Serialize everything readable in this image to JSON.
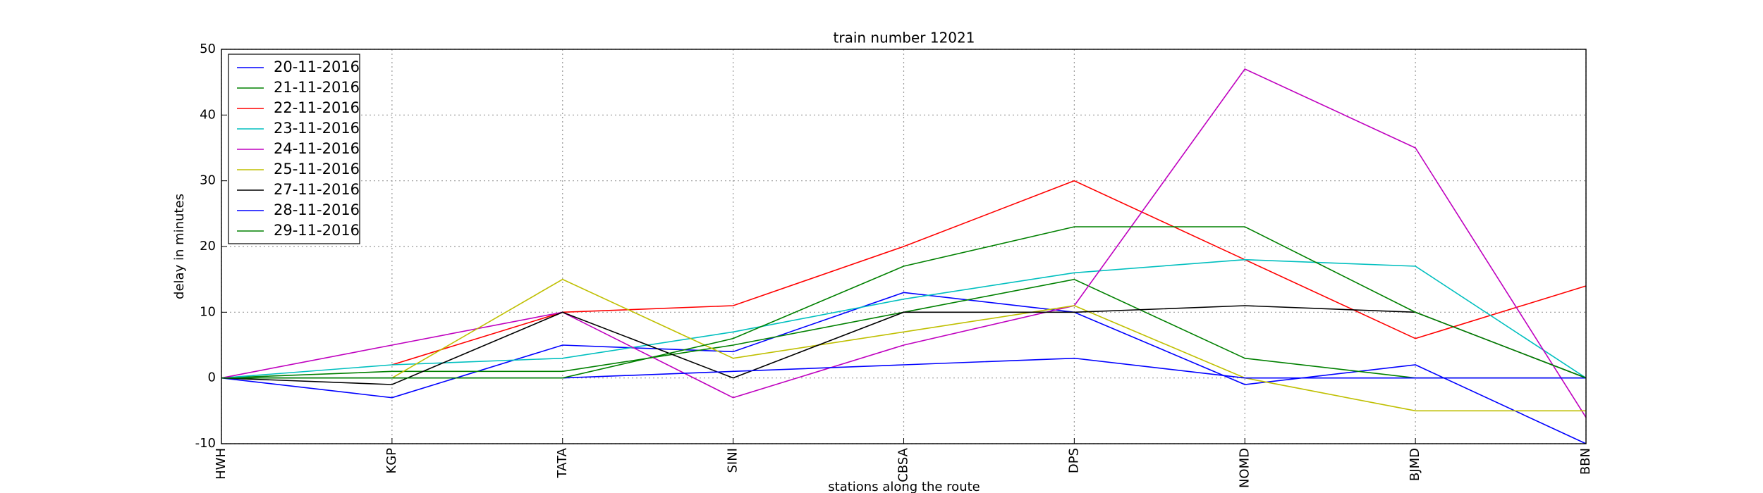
{
  "chart_data": {
    "type": "line",
    "title": "train number 12021",
    "xlabel": "stations along the route",
    "ylabel": "delay in minutes",
    "categories": [
      "HWH",
      "KGP",
      "TATA",
      "SINI",
      "CBSA",
      "DPS",
      "NOMD",
      "BJMD",
      "BBN"
    ],
    "ylim": [
      -10,
      50
    ],
    "yticks": [
      -10,
      0,
      10,
      20,
      30,
      40,
      50
    ],
    "grid": true,
    "legend": "upper left",
    "series": [
      {
        "name": "20-11-2016",
        "color": "#0000ff",
        "values": [
          0,
          -3,
          5,
          4,
          13,
          10,
          -1,
          2,
          -10
        ]
      },
      {
        "name": "21-11-2016",
        "color": "#008000",
        "values": [
          0,
          1,
          1,
          5,
          10,
          15,
          3,
          0,
          0
        ]
      },
      {
        "name": "22-11-2016",
        "color": "#ff0000",
        "values": [
          null,
          2,
          10,
          11,
          20,
          30,
          18,
          6,
          14
        ]
      },
      {
        "name": "23-11-2016",
        "color": "#00bfbf",
        "values": [
          0,
          2,
          3,
          7,
          12,
          16,
          18,
          17,
          0
        ]
      },
      {
        "name": "24-11-2016",
        "color": "#bf00bf",
        "values": [
          0,
          5,
          10,
          -3,
          5,
          11,
          47,
          35,
          -6
        ]
      },
      {
        "name": "25-11-2016",
        "color": "#bfbf00",
        "values": [
          0,
          0,
          15,
          3,
          7,
          11,
          0,
          -5,
          -5
        ]
      },
      {
        "name": "27-11-2016",
        "color": "#000000",
        "values": [
          0,
          -1,
          10,
          0,
          10,
          10,
          11,
          10,
          0
        ]
      },
      {
        "name": "28-11-2016",
        "color": "#0000ff",
        "values": [
          0,
          0,
          0,
          1,
          2,
          3,
          0,
          0,
          0
        ]
      },
      {
        "name": "29-11-2016",
        "color": "#008000",
        "values": [
          0,
          0,
          0,
          6,
          17,
          23,
          23,
          10,
          0
        ]
      }
    ]
  }
}
